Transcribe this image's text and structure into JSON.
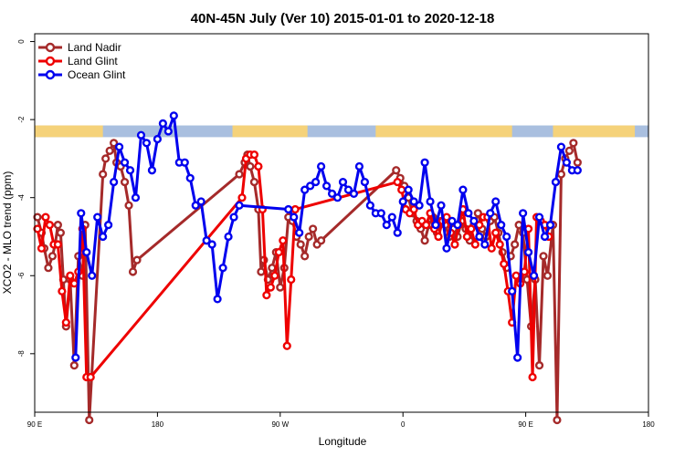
{
  "chart_data": {
    "type": "line",
    "title": "40N-45N July (Ver 10)   2015-01-01 to 2020-12-18",
    "xlabel": "Longitude",
    "ylabel": "XCO2 - MLO trend (ppm)",
    "xlim": [
      90,
      450
    ],
    "ylim": [
      -9.5,
      0.2
    ],
    "y_ticks": [
      0,
      -2,
      -4,
      -6,
      -8
    ],
    "y_tick_labels": [
      "0",
      "-2",
      "-4",
      "-6",
      "-8"
    ],
    "x_ticks": [
      90,
      180,
      270,
      360,
      450
    ],
    "x_tick_labels": [
      "90 E",
      "180",
      "90 W",
      "0",
      "90 E",
      "180"
    ],
    "x_tick_positions": [
      90,
      180,
      270,
      360,
      450,
      540
    ],
    "grid": false,
    "legend_position": "top-left",
    "land_sea_mask": {
      "y_range": [
        -2.15,
        -2.45
      ],
      "land_color": "#f5d27a",
      "ocean_color": "#a9bfdf",
      "land_segments": [
        [
          90,
          140
        ],
        [
          235,
          290
        ],
        [
          340,
          440
        ],
        [
          470,
          530
        ]
      ]
    },
    "series": [
      {
        "name": "Land Nadir",
        "color": "#a52a2a",
        "x": [
          92,
          95,
          97,
          100,
          103,
          105,
          107,
          109,
          111,
          113,
          116,
          119,
          122,
          125,
          127,
          130,
          140,
          142,
          145,
          148,
          150,
          153,
          156,
          159,
          162,
          165,
          240,
          244,
          246,
          248,
          251,
          254,
          256,
          258,
          261,
          264,
          267,
          270,
          273,
          276,
          279,
          282,
          285,
          288,
          291,
          294,
          297,
          300,
          355,
          358,
          361,
          364,
          367,
          370,
          373,
          376,
          379,
          382,
          385,
          388,
          391,
          394,
          397,
          400,
          403,
          406,
          409,
          412,
          415,
          418,
          421,
          424,
          427,
          430,
          433,
          436,
          439,
          442,
          445,
          448,
          451,
          454,
          457,
          460,
          463,
          466,
          470,
          473,
          476,
          479,
          482,
          485,
          488
        ],
        "y": [
          -4.5,
          -4.9,
          -5.3,
          -5.8,
          -5.5,
          -5.2,
          -4.7,
          -4.9,
          -6.1,
          -7.3,
          -6.1,
          -8.3,
          -5.5,
          -6.0,
          -4.7,
          -9.7,
          -3.4,
          -3.0,
          -2.8,
          -2.6,
          -3.1,
          -3.2,
          -3.6,
          -4.2,
          -5.9,
          -5.6,
          -3.4,
          -3.1,
          -2.9,
          -3.2,
          -3.6,
          -4.3,
          -5.9,
          -5.6,
          -6.1,
          -5.8,
          -5.4,
          -6.3,
          -5.8,
          -4.5,
          -4.6,
          -5.0,
          -5.2,
          -5.5,
          -5.0,
          -4.8,
          -5.2,
          -5.1,
          -3.3,
          -3.5,
          -3.7,
          -4.0,
          -4.4,
          -4.6,
          -4.8,
          -5.1,
          -4.7,
          -4.5,
          -4.9,
          -4.6,
          -4.7,
          -5.0,
          -4.8,
          -5.0,
          -4.6,
          -4.8,
          -5.1,
          -4.7,
          -4.4,
          -4.8,
          -5.0,
          -4.6,
          -4.5,
          -4.9,
          -5.4,
          -5.8,
          -5.5,
          -5.2,
          -4.7,
          -4.9,
          -6.1,
          -7.3,
          -6.1,
          -8.3,
          -5.5,
          -6.0,
          -4.7,
          -9.7,
          -3.4,
          -3.0,
          -2.8,
          -2.6,
          -3.1
        ]
      },
      {
        "name": "Land Glint",
        "color": "#ee0000",
        "x": [
          92,
          95,
          98,
          101,
          104,
          107,
          110,
          113,
          116,
          119,
          122,
          125,
          128,
          131,
          242,
          245,
          248,
          251,
          254,
          257,
          260,
          263,
          266,
          269,
          272,
          275,
          278,
          281,
          356,
          359,
          362,
          365,
          368,
          371,
          374,
          377,
          380,
          383,
          386,
          389,
          392,
          395,
          398,
          401,
          404,
          407,
          410,
          413,
          416,
          419,
          422,
          425,
          428,
          431,
          434,
          437,
          440,
          443,
          446,
          449,
          452,
          455,
          458,
          461,
          464,
          467
        ],
        "y": [
          -4.8,
          -5.3,
          -4.5,
          -4.7,
          -5.2,
          -5.2,
          -6.4,
          -7.2,
          -6.0,
          -6.2,
          -5.9,
          -4.8,
          -8.6,
          -8.6,
          -4.0,
          -3.0,
          -2.9,
          -2.9,
          -3.2,
          -4.3,
          -6.5,
          -6.3,
          -6.0,
          -5.4,
          -5.1,
          -7.8,
          -6.1,
          -4.3,
          -3.6,
          -3.8,
          -4.3,
          -4.4,
          -4.3,
          -4.7,
          -4.6,
          -4.7,
          -4.4,
          -4.8,
          -5.0,
          -4.6,
          -4.5,
          -4.9,
          -5.2,
          -4.7,
          -4.3,
          -5.0,
          -4.8,
          -5.2,
          -4.7,
          -4.5,
          -4.5,
          -5.3,
          -4.9,
          -5.2,
          -5.7,
          -6.4,
          -7.2,
          -6.0,
          -6.2,
          -5.9,
          -4.8,
          -8.6,
          -4.5,
          -4.6,
          -4.7,
          -5.0
        ]
      },
      {
        "name": "Ocean Glint",
        "color": "#0000ee",
        "x": [
          120,
          124,
          128,
          132,
          136,
          140,
          144,
          148,
          152,
          156,
          160,
          164,
          168,
          172,
          176,
          180,
          184,
          188,
          192,
          196,
          200,
          204,
          208,
          212,
          216,
          220,
          224,
          228,
          232,
          236,
          240,
          276,
          280,
          284,
          288,
          292,
          296,
          300,
          304,
          308,
          312,
          316,
          320,
          324,
          328,
          332,
          336,
          340,
          344,
          348,
          352,
          356,
          360,
          364,
          368,
          372,
          376,
          380,
          384,
          388,
          392,
          396,
          400,
          404,
          408,
          412,
          416,
          420,
          424,
          428,
          432,
          436,
          440,
          444,
          448,
          452,
          456,
          460,
          464,
          468,
          472,
          476,
          480,
          484,
          488
        ],
        "y": [
          -8.1,
          -4.4,
          -5.4,
          -6.0,
          -4.5,
          -5.0,
          -4.7,
          -3.6,
          -2.7,
          -3.1,
          -3.3,
          -4.0,
          -2.4,
          -2.6,
          -3.3,
          -2.5,
          -2.1,
          -2.3,
          -1.9,
          -3.1,
          -3.1,
          -3.5,
          -4.2,
          -4.1,
          -5.1,
          -5.2,
          -6.6,
          -5.8,
          -5.0,
          -4.5,
          -4.2,
          -4.3,
          -4.5,
          -4.9,
          -3.8,
          -3.7,
          -3.6,
          -3.2,
          -3.7,
          -3.9,
          -4.0,
          -3.6,
          -3.8,
          -3.9,
          -3.2,
          -3.6,
          -4.2,
          -4.4,
          -4.4,
          -4.7,
          -4.5,
          -4.9,
          -4.1,
          -3.8,
          -4.1,
          -4.2,
          -3.1,
          -4.1,
          -4.7,
          -4.2,
          -5.3,
          -4.6,
          -4.7,
          -3.8,
          -4.4,
          -4.6,
          -5.0,
          -5.2,
          -4.4,
          -4.1,
          -4.7,
          -5.0,
          -6.4,
          -8.1,
          -4.4,
          -5.4,
          -6.0,
          -4.5,
          -5.0,
          -4.7,
          -3.6,
          -2.7,
          -3.1,
          -3.3,
          -3.3
        ]
      }
    ]
  }
}
